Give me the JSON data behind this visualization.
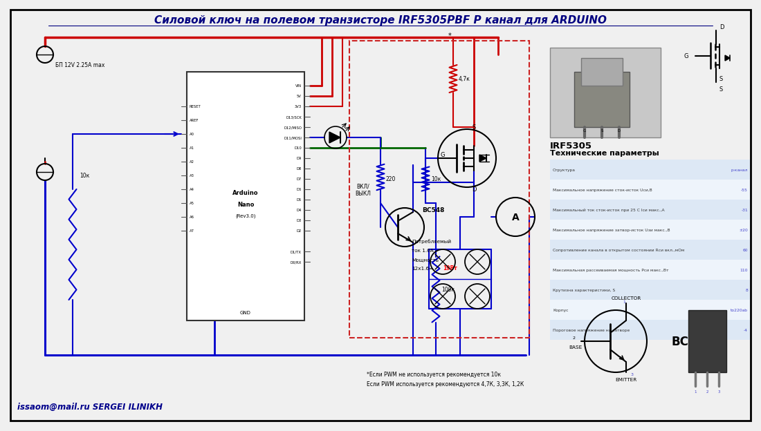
{
  "title": "Силовой ключ на полевом транзисторе IRF5305PBF P канал для ARDUINO",
  "bg_color": "#f0f0f0",
  "wire_red": "#cc0000",
  "wire_blue": "#0000cc",
  "wire_green": "#006600",
  "table_row1_color": "#dde8f5",
  "table_row2_color": "#eef4fb",
  "table_link_color": "#4444cc",
  "tech_params_title": "Технические параметры",
  "irf_name": "IRF5305",
  "table_rows": [
    [
      "Структура",
      "р-канал"
    ],
    [
      "Максимальное напряжение сток-исток Uси,В",
      "-55"
    ],
    [
      "Максимальный ток сток-исток при 25 С Iси макс.,А",
      "-31"
    ],
    [
      "Максимальное напряжение затвор-исток Uзи макс.,В",
      "±20"
    ],
    [
      "Сопротивление канала в открытом состоянии Rси вкл.,мОм",
      "60"
    ],
    [
      "Максимальная рассеиваемая мощность Рси макс.,Вт",
      "110"
    ],
    [
      "Крутизна характеристики, S",
      "8"
    ],
    [
      "Корпус",
      "to220ab"
    ],
    [
      "Пороговое напряжение на затворе",
      "-4"
    ]
  ],
  "footnote1": "*Если PWM не используется рекомендуется 10к",
  "footnote2": "Если PWM используется рекомендуются 4,7К, 3,3К, 1,2К",
  "author": "issaom@mail.ru SERGEI ILINIKH",
  "bp_label": "БП 12V 2.25A max",
  "resistor_10k_label": "10к",
  "resistor_220_label": "220",
  "resistor_10k2_label": "10к",
  "resistor_100k_label": "100к",
  "resistor_47k_label": "4,7к",
  "bc548_label": "BC548",
  "vkl_label": "ВКЛ/\nВЫКЛ",
  "power_line1": "Потребляемый",
  "power_line2": "ток 1.6А",
  "power_line3": "Мощность",
  "power_line4": "12x1.6=",
  "power_bold": "19Вт",
  "ampere_label": "А",
  "collector_label": "COLLECTOR",
  "base_label": "BASE",
  "emitter_label": "EMITTER",
  "bc548_label2": "BC548",
  "d_label": "D",
  "g_label": "G",
  "s_label": "S"
}
